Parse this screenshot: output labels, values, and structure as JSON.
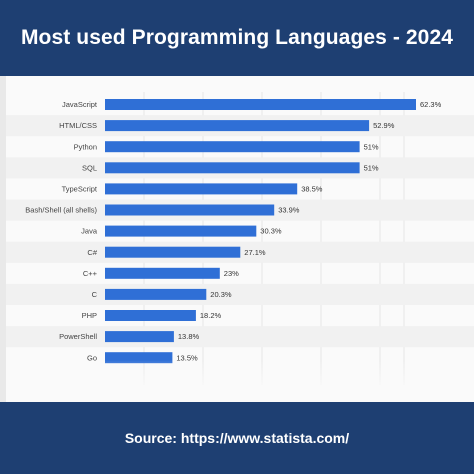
{
  "header": {
    "title": "Most used Programming Languages - 2024"
  },
  "footer": {
    "source": "Source: https://www.statista.com/"
  },
  "colors": {
    "header_bg": "#1e3f72",
    "bar": "#2f6fd6",
    "text_white": "#ffffff"
  },
  "chart_data": {
    "type": "bar",
    "orientation": "horizontal",
    "categories": [
      "JavaScript",
      "HTML/CSS",
      "Python",
      "SQL",
      "TypeScript",
      "Bash/Shell (all shells)",
      "Java",
      "C#",
      "C++",
      "C",
      "PHP",
      "PowerShell",
      "Go"
    ],
    "values": [
      62.3,
      52.9,
      51,
      51,
      38.5,
      33.9,
      30.3,
      27.1,
      23,
      20.3,
      18.2,
      13.8,
      13.5
    ],
    "value_labels": [
      "62.3%",
      "52.9%",
      "51%",
      "51%",
      "38.5%",
      "33.9%",
      "30.3%",
      "27.1%",
      "23%",
      "20.3%",
      "18.2%",
      "13.8%",
      "13.5%"
    ],
    "unit": "%",
    "xlim": [
      0,
      62.3
    ],
    "grid": true,
    "legend": "none"
  }
}
